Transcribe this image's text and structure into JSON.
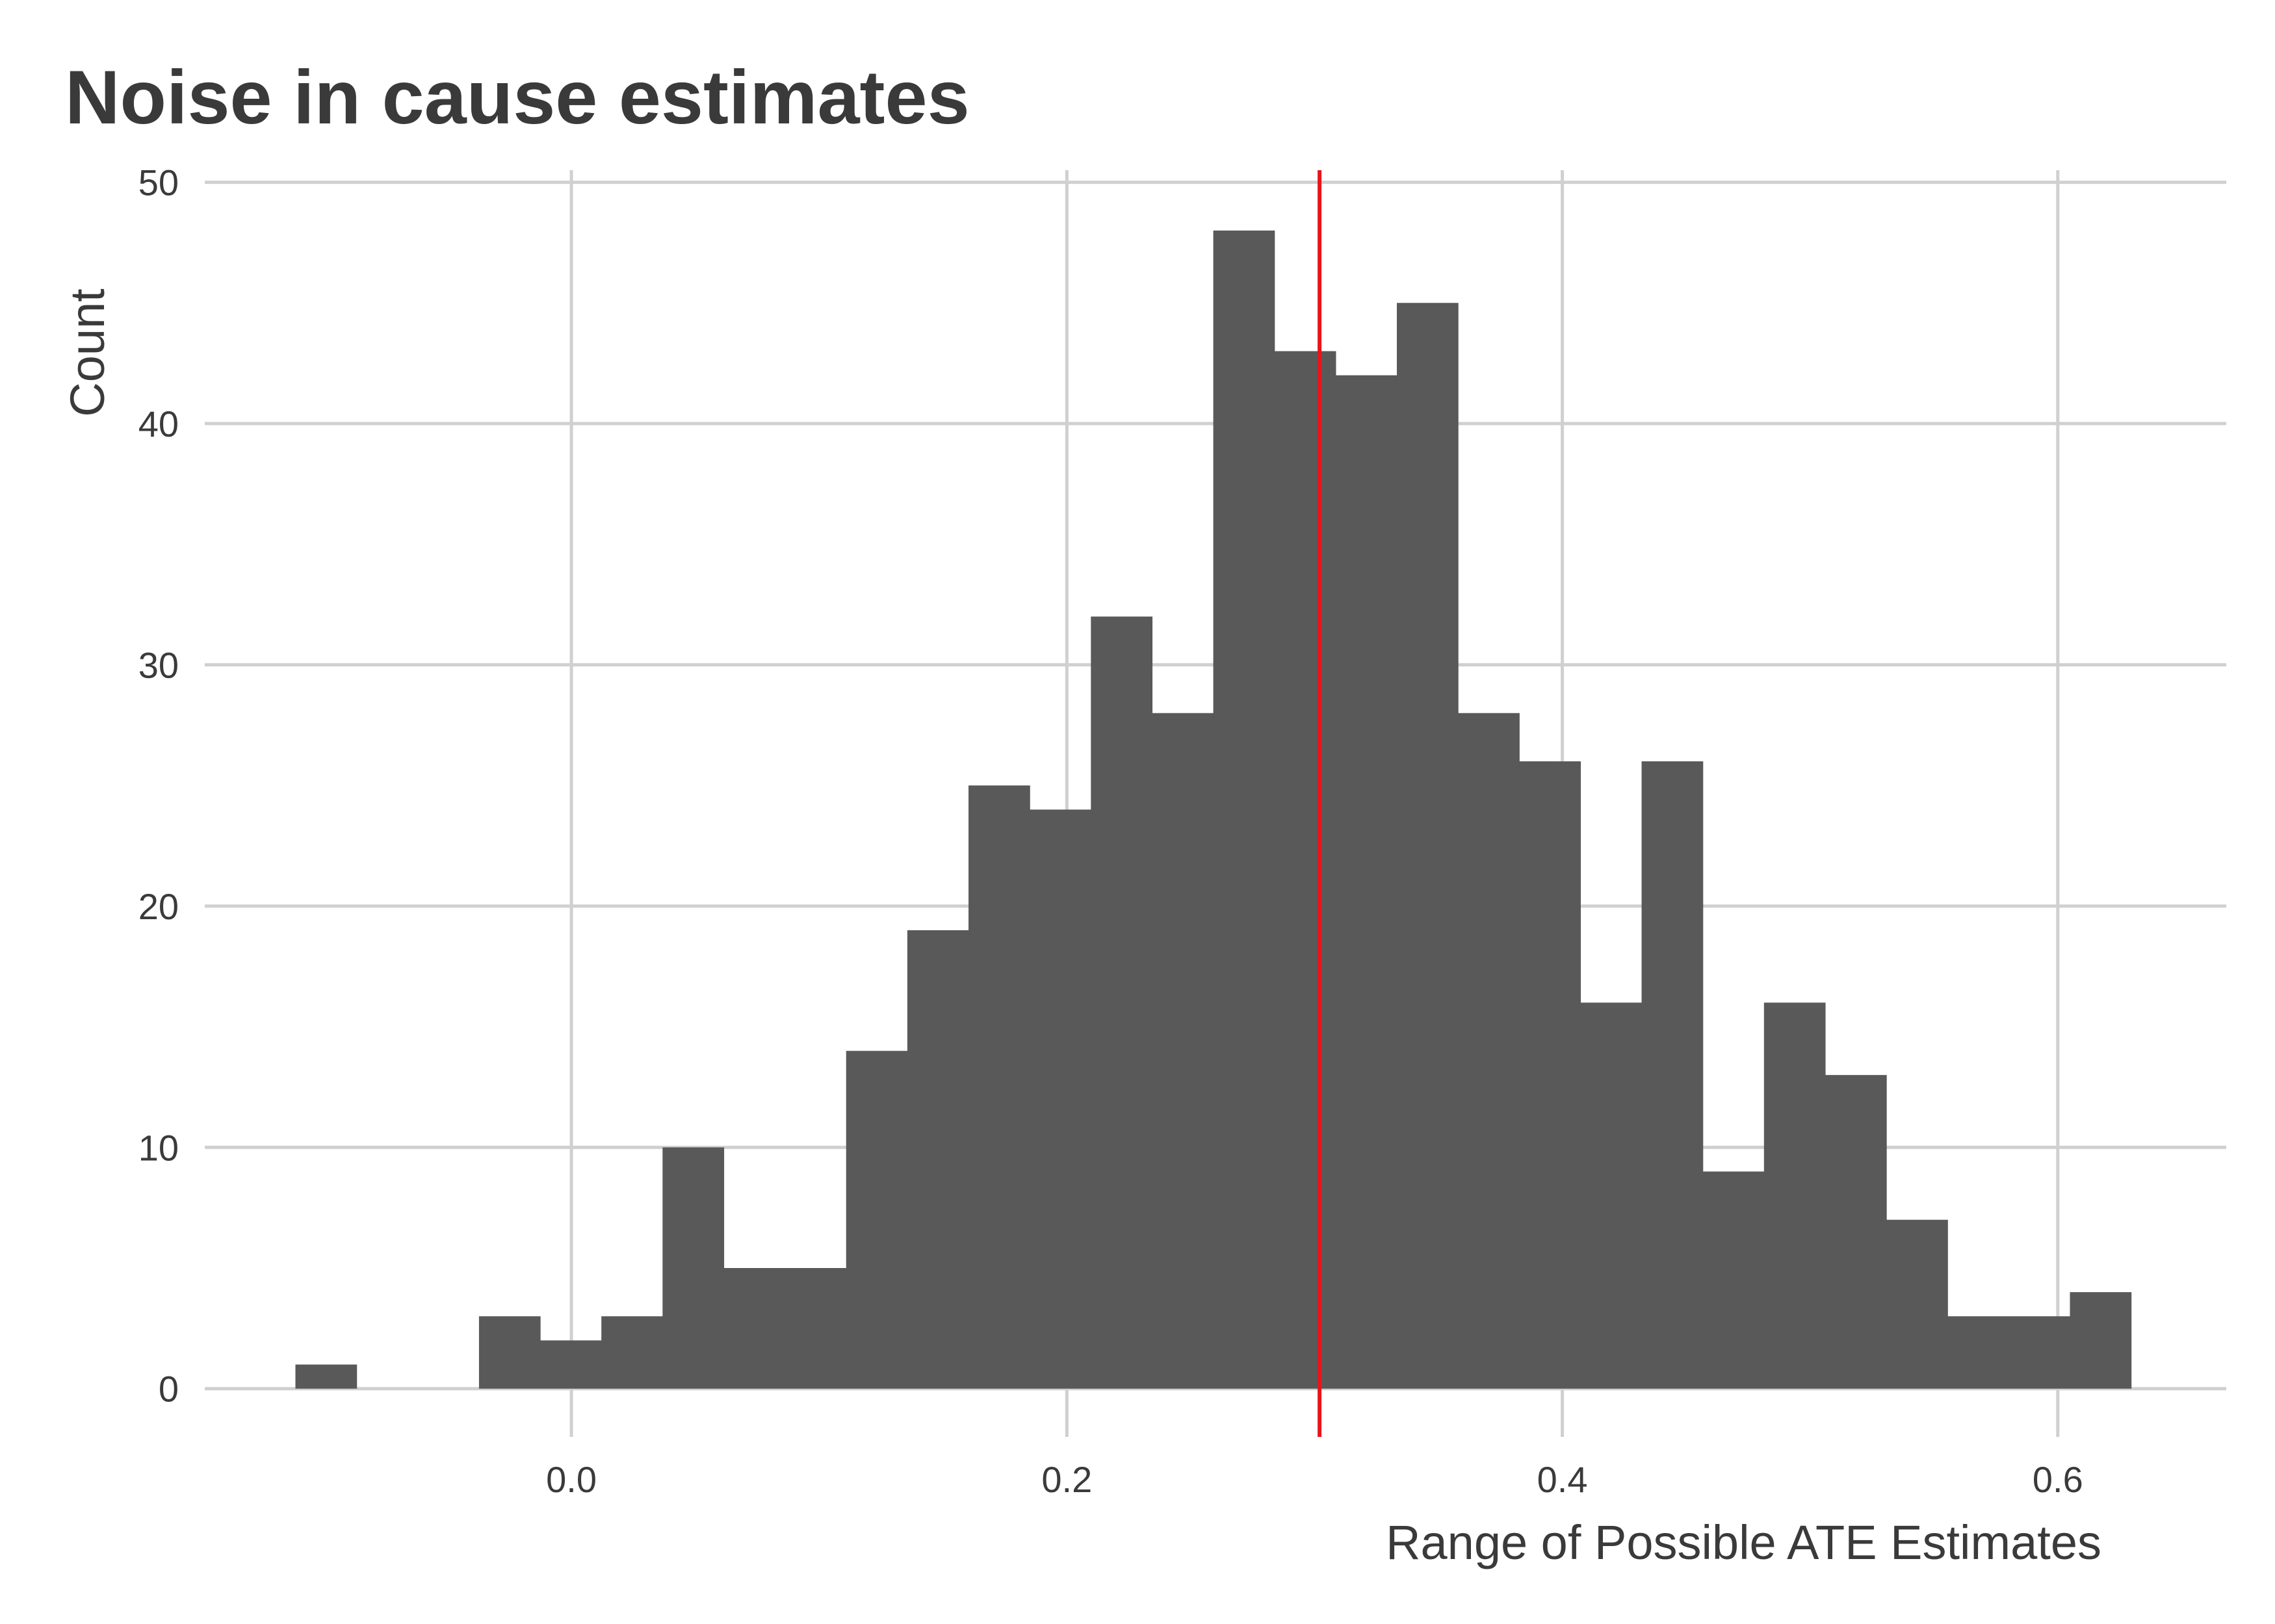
{
  "chart_data": {
    "type": "bar",
    "title": "Noise in cause estimates",
    "xlabel": "Range of Possible ATE Estimates",
    "ylabel": "Count",
    "xlim": [
      -0.148,
      0.668
    ],
    "ylim": [
      -2,
      50.5
    ],
    "x_ticks": [
      0.0,
      0.2,
      0.4,
      0.6
    ],
    "x_tick_labels": [
      "0.0",
      "0.2",
      "0.4",
      "0.6"
    ],
    "y_ticks": [
      0,
      10,
      20,
      30,
      40,
      50
    ],
    "y_tick_labels": [
      "0",
      "10",
      "20",
      "30",
      "40",
      "50"
    ],
    "grid": true,
    "legend": "none",
    "bin_width": 0.0247,
    "bar_color": "#595959",
    "reference_line": {
      "x": 0.302,
      "color": "#e8141c"
    },
    "bins": [
      {
        "x0": -0.1114,
        "count": 1
      },
      {
        "x0": -0.0867,
        "count": 0
      },
      {
        "x0": -0.062,
        "count": 0
      },
      {
        "x0": -0.0373,
        "count": 3
      },
      {
        "x0": -0.0126,
        "count": 2
      },
      {
        "x0": 0.0121,
        "count": 3
      },
      {
        "x0": 0.0368,
        "count": 10
      },
      {
        "x0": 0.0615,
        "count": 5
      },
      {
        "x0": 0.0862,
        "count": 5
      },
      {
        "x0": 0.1109,
        "count": 14
      },
      {
        "x0": 0.1356,
        "count": 19
      },
      {
        "x0": 0.1603,
        "count": 25
      },
      {
        "x0": 0.185,
        "count": 24
      },
      {
        "x0": 0.2097,
        "count": 32
      },
      {
        "x0": 0.2344,
        "count": 28
      },
      {
        "x0": 0.2591,
        "count": 48
      },
      {
        "x0": 0.2838,
        "count": 43
      },
      {
        "x0": 0.3085,
        "count": 42
      },
      {
        "x0": 0.3332,
        "count": 45
      },
      {
        "x0": 0.3579,
        "count": 28
      },
      {
        "x0": 0.3826,
        "count": 26
      },
      {
        "x0": 0.4073,
        "count": 16
      },
      {
        "x0": 0.432,
        "count": 26
      },
      {
        "x0": 0.4567,
        "count": 9
      },
      {
        "x0": 0.4814,
        "count": 16
      },
      {
        "x0": 0.5061,
        "count": 13
      },
      {
        "x0": 0.5308,
        "count": 7
      },
      {
        "x0": 0.5555,
        "count": 3
      },
      {
        "x0": 0.5802,
        "count": 3
      },
      {
        "x0": 0.6049,
        "count": 4
      }
    ]
  }
}
